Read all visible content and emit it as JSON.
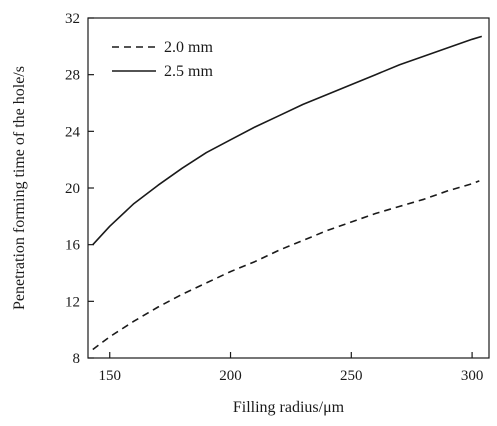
{
  "chart_data": {
    "type": "line",
    "title": "",
    "xlabel": "Filling radius/μm",
    "ylabel": "Penetration forming time of the hole/s",
    "xlim": [
      141,
      307
    ],
    "ylim": [
      8,
      32
    ],
    "xticks": [
      150,
      200,
      250,
      300
    ],
    "yticks": [
      8,
      12,
      16,
      20,
      24,
      28,
      32
    ],
    "grid": false,
    "legend_position": "top-left",
    "series": [
      {
        "name": "2.0 mm",
        "style": "dashed",
        "color": "#1a1a1a",
        "x": [
          143,
          150,
          160,
          170,
          180,
          190,
          200,
          210,
          220,
          230,
          240,
          250,
          260,
          270,
          280,
          290,
          300,
          303
        ],
        "values": [
          8.6,
          9.5,
          10.6,
          11.6,
          12.5,
          13.3,
          14.1,
          14.8,
          15.6,
          16.3,
          17.0,
          17.6,
          18.2,
          18.7,
          19.2,
          19.8,
          20.3,
          20.5
        ]
      },
      {
        "name": "2.5 mm",
        "style": "solid",
        "color": "#1a1a1a",
        "x": [
          143,
          150,
          160,
          170,
          180,
          190,
          200,
          210,
          220,
          230,
          240,
          250,
          260,
          270,
          280,
          290,
          300,
          304
        ],
        "values": [
          16.0,
          17.3,
          18.9,
          20.2,
          21.4,
          22.5,
          23.4,
          24.3,
          25.1,
          25.9,
          26.6,
          27.3,
          28.0,
          28.7,
          29.3,
          29.9,
          30.5,
          30.7
        ]
      }
    ]
  }
}
